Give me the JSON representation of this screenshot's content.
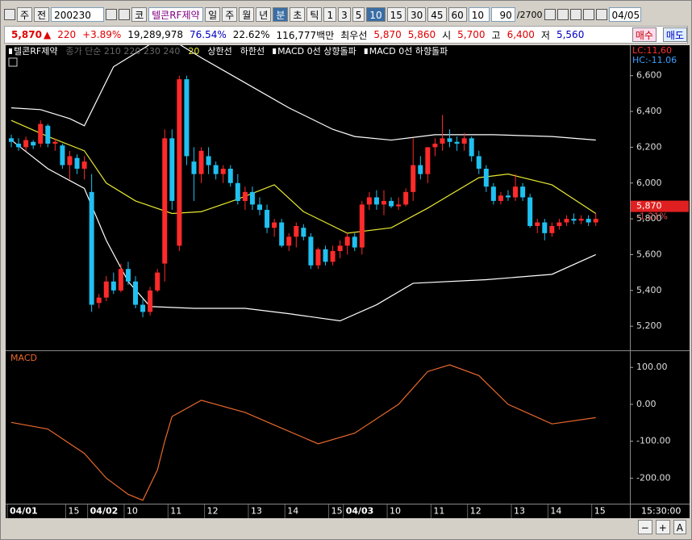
{
  "toolbar": {
    "market": "주",
    "prev": "전",
    "code": "200230",
    "kr": "코",
    "name": "텔콘RF제약",
    "periods": [
      "일",
      "주",
      "월",
      "년",
      "분",
      "초",
      "틱"
    ],
    "intervals": [
      "1",
      "3",
      "5",
      "10",
      "15",
      "30",
      "45",
      "60"
    ],
    "count": "10",
    "range": "90",
    "total": "/2700",
    "date": "04/05"
  },
  "quote": {
    "price": "5,870",
    "arrow": "▲",
    "change": "220",
    "pct": "+3.89%",
    "volume": "19,289,978",
    "ratio1": "76.54%",
    "ratio2": "22.62%",
    "amount": "116,777백만",
    "best": "최우선",
    "ask": "5,870",
    "bid": "5,860",
    "open_label": "시",
    "open": "5,700",
    "high_label": "고",
    "high": "6,400",
    "low_label": "저",
    "low": "5,560",
    "buy": "매수",
    "sell": "매도"
  },
  "chart_data": [
    {
      "type": "candlestick",
      "title": "텔콘RF제약",
      "legend_muted": "종가 단순 210 220 230 240",
      "signals": [
        "MACD 0선 상향돌파",
        "MACD 0선 하향돌파"
      ],
      "up_color": "#ff2a2a",
      "down_color": "#20c0f0",
      "open": [
        6250,
        6220,
        6200,
        6230,
        6220,
        6320,
        6220,
        6210,
        6100,
        6140,
        6080,
        5950,
        5330,
        5360,
        5450,
        5400,
        5520,
        5450,
        5320,
        5280,
        5400,
        5550,
        6250,
        5650,
        6580,
        6120,
        6050,
        6150,
        6100,
        6050,
        6080,
        6000,
        5900,
        5950,
        5880,
        5850,
        5750,
        5780,
        5650,
        5700,
        5750,
        5700,
        5540,
        5630,
        5560,
        5620,
        5650,
        5700,
        5640,
        5880,
        5920,
        5880,
        5900,
        5870,
        5880,
        5950,
        6100,
        6050,
        6200,
        6220,
        6250,
        6230,
        6220,
        6250,
        6150,
        6080,
        5980,
        5900,
        5930,
        5920,
        5980,
        5920,
        5760,
        5780,
        5720,
        5760,
        5780,
        5800,
        5790,
        5800,
        5780
      ],
      "high": [
        6270,
        6250,
        6260,
        6240,
        6350,
        6330,
        6250,
        6220,
        6180,
        6160,
        6150,
        6050,
        5380,
        5480,
        5500,
        5550,
        5560,
        5480,
        5350,
        5420,
        5520,
        6300,
        6300,
        6600,
        6600,
        6200,
        6200,
        6200,
        6120,
        6100,
        6100,
        6050,
        5980,
        5980,
        5920,
        5880,
        5800,
        5800,
        5720,
        5780,
        5770,
        5720,
        5640,
        5650,
        5650,
        5680,
        5720,
        5720,
        5900,
        5950,
        5960,
        5960,
        5920,
        5920,
        5970,
        6250,
        6150,
        6200,
        6250,
        6380,
        6300,
        6260,
        6280,
        6260,
        6180,
        6100,
        6000,
        5950,
        5960,
        6050,
        6000,
        5940,
        5800,
        5800,
        5780,
        5800,
        5820,
        5830,
        5820,
        5820,
        5830
      ],
      "low": [
        6200,
        6180,
        6180,
        6190,
        6200,
        6200,
        6180,
        6080,
        6020,
        6050,
        6020,
        5280,
        5300,
        5340,
        5380,
        5390,
        5430,
        5300,
        5250,
        5260,
        5390,
        5450,
        5850,
        5620,
        6100,
        5900,
        6000,
        6050,
        6020,
        6000,
        5980,
        5880,
        5850,
        5850,
        5820,
        5720,
        5700,
        5640,
        5620,
        5640,
        5680,
        5520,
        5520,
        5540,
        5540,
        5580,
        5600,
        5620,
        5600,
        5850,
        5850,
        5820,
        5860,
        5850,
        5870,
        5900,
        6020,
        6000,
        6150,
        6180,
        6200,
        6180,
        6180,
        6120,
        6050,
        5950,
        5880,
        5880,
        5900,
        5900,
        5900,
        5750,
        5720,
        5680,
        5700,
        5740,
        5760,
        5770,
        5770,
        5760,
        5760
      ],
      "close": [
        6230,
        6200,
        6240,
        6210,
        6330,
        6220,
        6230,
        6100,
        6150,
        6080,
        6120,
        5320,
        5360,
        5450,
        5400,
        5520,
        5450,
        5320,
        5280,
        5400,
        5500,
        6250,
        5900,
        6580,
        6150,
        6050,
        6180,
        6100,
        6050,
        6080,
        6000,
        5900,
        5950,
        5880,
        5850,
        5750,
        5780,
        5650,
        5700,
        5760,
        5700,
        5540,
        5630,
        5560,
        5620,
        5650,
        5700,
        5640,
        5880,
        5920,
        5880,
        5900,
        5870,
        5880,
        5950,
        6100,
        6050,
        6200,
        6220,
        6250,
        6230,
        6220,
        6250,
        6150,
        6080,
        5980,
        5900,
        5930,
        5920,
        5980,
        5920,
        5760,
        5780,
        5720,
        5760,
        5780,
        5800,
        5790,
        5800,
        5780,
        5800
      ],
      "overlays": [
        {
          "name": "20",
          "color": "#e8e830",
          "x": [
            0,
            5,
            10,
            13,
            17,
            22,
            26,
            31,
            36,
            40,
            46,
            52,
            57,
            64,
            68,
            74,
            80
          ],
          "values": [
            6350,
            6260,
            6180,
            6000,
            5900,
            5830,
            5840,
            5910,
            5990,
            5840,
            5720,
            5750,
            5860,
            6030,
            6050,
            5990,
            5830
          ]
        },
        {
          "name": "상한선",
          "color": "#ffffff",
          "x": [
            0,
            4,
            8,
            10,
            14,
            20,
            22,
            26,
            32,
            38,
            44,
            47,
            52,
            58,
            66,
            74,
            80
          ],
          "values": [
            6420,
            6410,
            6360,
            6320,
            6650,
            6800,
            6800,
            6700,
            6560,
            6420,
            6300,
            6260,
            6240,
            6270,
            6270,
            6260,
            6240
          ]
        },
        {
          "name": "하한선",
          "color": "#ffffff",
          "x": [
            0,
            5,
            10,
            13,
            16,
            19,
            25,
            32,
            38,
            45,
            50,
            55,
            65,
            74,
            80
          ],
          "values": [
            6240,
            6080,
            5970,
            5680,
            5450,
            5310,
            5300,
            5300,
            5270,
            5230,
            5320,
            5440,
            5460,
            5490,
            5600
          ]
        }
      ],
      "ylim": [
        5070,
        6770
      ],
      "yticks": [
        {
          "value": 5200,
          "label": "5,200"
        },
        {
          "value": 5400,
          "label": "5,400"
        },
        {
          "value": 5600,
          "label": "5,600"
        },
        {
          "value": 5800,
          "label": "5,800"
        },
        {
          "value": 6000,
          "label": "6,000"
        },
        {
          "value": 6200,
          "label": "6,200"
        },
        {
          "value": 6400,
          "label": "6,400"
        },
        {
          "value": 6600,
          "label": "6,600"
        }
      ],
      "xlim": [
        0,
        85
      ],
      "xticks": [
        {
          "value": 0,
          "label": "04/01"
        },
        {
          "value": 8,
          "label": "15"
        },
        {
          "value": 11,
          "label": "04/02"
        },
        {
          "value": 16,
          "label": "10"
        },
        {
          "value": 22,
          "label": "11"
        },
        {
          "value": 27,
          "label": "12"
        },
        {
          "value": 33,
          "label": "13"
        },
        {
          "value": 38,
          "label": "14"
        },
        {
          "value": 44,
          "label": "15"
        },
        {
          "value": 46,
          "label": "04/03"
        },
        {
          "value": 52,
          "label": "10"
        },
        {
          "value": 58,
          "label": "11"
        },
        {
          "value": 63,
          "label": "12"
        },
        {
          "value": 69,
          "label": "13"
        },
        {
          "value": 74,
          "label": "14"
        },
        {
          "value": 80,
          "label": "15"
        }
      ],
      "lc": "LC:11,60",
      "hc": "HC:-11.06",
      "last": {
        "value": 5870,
        "label": "5,870"
      },
      "change": "-1.21%",
      "time": "15:30:00"
    },
    {
      "type": "line",
      "title": "MACD",
      "series": [
        {
          "color": "#e8682c",
          "x": [
            0,
            5,
            10,
            13,
            16,
            18,
            20,
            21,
            22,
            26,
            32,
            36,
            42,
            47,
            53,
            57,
            60,
            64,
            68,
            74,
            80
          ],
          "values": [
            -49,
            -67,
            -133,
            -200,
            -244,
            -260,
            -178,
            -100,
            -33,
            11,
            -22,
            -56,
            -107,
            -78,
            0,
            89,
            107,
            78,
            0,
            -53,
            -36
          ]
        }
      ],
      "ylim": [
        -267,
        142
      ],
      "yticks": [
        {
          "value": -200,
          "label": "-200.00"
        },
        {
          "value": -100,
          "label": "-100.00"
        },
        {
          "value": 0,
          "label": "0.00"
        },
        {
          "value": 100,
          "label": "100.00"
        }
      ]
    }
  ],
  "bottom": {
    "minus": "−",
    "plus": "+",
    "font": "A"
  }
}
